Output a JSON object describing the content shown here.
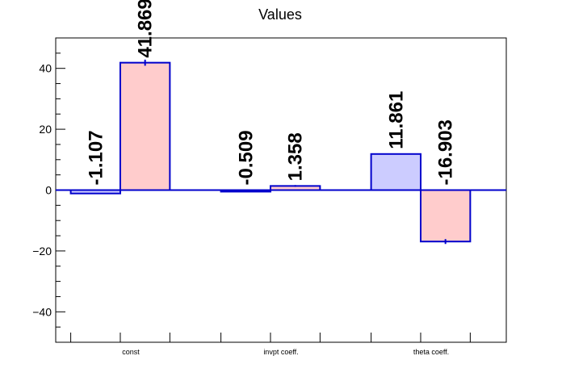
{
  "chart_data": {
    "type": "bar",
    "title": "Values",
    "categories": [
      "const",
      "invpt coeff.",
      "theta coeff."
    ],
    "xlabel": "",
    "ylabel": "",
    "ylim": [
      -50,
      50
    ],
    "yticks": [
      -40,
      -20,
      0,
      20,
      40
    ],
    "grid": false,
    "series": [
      {
        "values": [
          -1.107,
          -0.509,
          11.861
        ],
        "labels": [
          "-1.107",
          "-0.509",
          "11.861"
        ],
        "fill": "#ccccff",
        "edge": "#0000cc"
      },
      {
        "values": [
          41.869,
          1.358,
          -16.903
        ],
        "labels": [
          "41.869",
          "1.358",
          "-16.903"
        ],
        "fill": "#ffcccc",
        "edge": "#0000cc"
      }
    ],
    "error_bars": [
      1.0,
      0.3,
      0.8
    ]
  }
}
